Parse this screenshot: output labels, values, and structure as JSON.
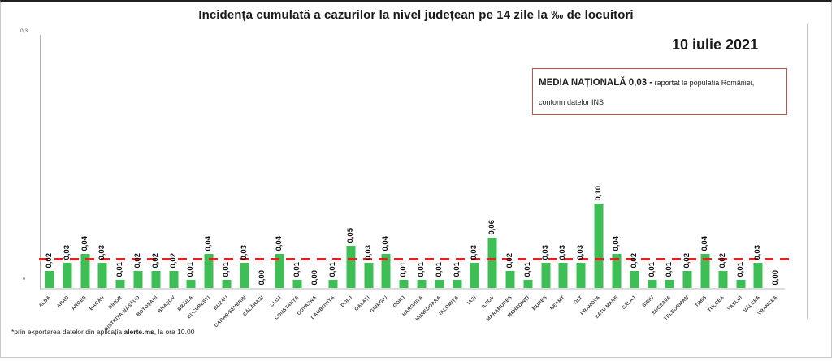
{
  "date": "10 iulie 2021",
  "national_average_box": {
    "bold_text": "MEDIA NAȚIONALĂ 0,03 -",
    "normal_text": " raportat la populația României, conform datelor INS"
  },
  "footnote": {
    "prefix": "*prin exportarea datelor din aplicația ",
    "bold": "alerte.ms",
    "suffix": ", la ora 10.00"
  },
  "colors": {
    "bar_green": "#3ebf55",
    "reference_red": "#e02222",
    "box_border_red": "#c0504d"
  },
  "chart_data": {
    "type": "bar",
    "title": "Incidența cumulată a cazurilor la nivel județean pe 14 zile  la ‰ de locuitori",
    "xlabel": "",
    "ylabel": "",
    "ylim": [
      0,
      0.3
    ],
    "y_axis_top_tick": "0,3",
    "grid": false,
    "bar_color": "#3ebf55",
    "reference_line": {
      "label": "MEDIA NAȚIONALĂ",
      "value": 0.03,
      "color": "#e02222",
      "style": "dashed"
    },
    "categories": [
      "ALBA",
      "ARAD",
      "ARGEȘ",
      "BACĂU",
      "BIHOR",
      "BISTRIȚA-NĂSĂUD",
      "BOTOȘANI",
      "BRAȘOV",
      "BRĂILA",
      "BUCUREȘTI",
      "BUZĂU",
      "CARAȘ-SEVERIN",
      "CĂLĂRAȘI",
      "CLUJ",
      "CONSTANȚA",
      "COVASNA",
      "DÂMBOVIȚA",
      "DOLJ",
      "GALAȚI",
      "GIURGIU",
      "GORJ",
      "HARGHITA",
      "HUNEDOARA",
      "IALOMIȚA",
      "IAȘI",
      "ILFOV",
      "MARAMUREȘ",
      "MEHEDINȚI",
      "MUREȘ",
      "NEAMȚ",
      "OLT",
      "PRAHOVA",
      "SATU MARE",
      "SĂLAJ",
      "SIBIU",
      "SUCEAVA",
      "TELEORMAN",
      "TIMIȘ",
      "TULCEA",
      "VASLUI",
      "VÂLCEA",
      "VRANCEA"
    ],
    "values": [
      0.02,
      0.03,
      0.04,
      0.03,
      0.01,
      0.02,
      0.02,
      0.02,
      0.01,
      0.04,
      0.01,
      0.03,
      0.0,
      0.04,
      0.01,
      0.0,
      0.01,
      0.05,
      0.03,
      0.04,
      0.01,
      0.01,
      0.01,
      0.01,
      0.03,
      0.06,
      0.02,
      0.01,
      0.03,
      0.03,
      0.03,
      0.1,
      0.04,
      0.02,
      0.01,
      0.01,
      0.02,
      0.04,
      0.02,
      0.01,
      0.03,
      0.0
    ],
    "value_labels": [
      "0,02",
      "0,03",
      "0,04",
      "0,03",
      "0,01",
      "0,02",
      "0,02",
      "0,02",
      "0,01",
      "0,04",
      "0,01",
      "0,03",
      "0,00",
      "0,04",
      "0,01",
      "0,00",
      "0,01",
      "0,05",
      "0,03",
      "0,04",
      "0,01",
      "0,01",
      "0,01",
      "0,01",
      "0,03",
      "0,06",
      "0,02",
      "0,01",
      "0,03",
      "0,03",
      "0,03",
      "0,10",
      "0,04",
      "0,02",
      "0,01",
      "0,01",
      "0,02",
      "0,04",
      "0,02",
      "0,01",
      "0,03",
      "0,00"
    ]
  }
}
